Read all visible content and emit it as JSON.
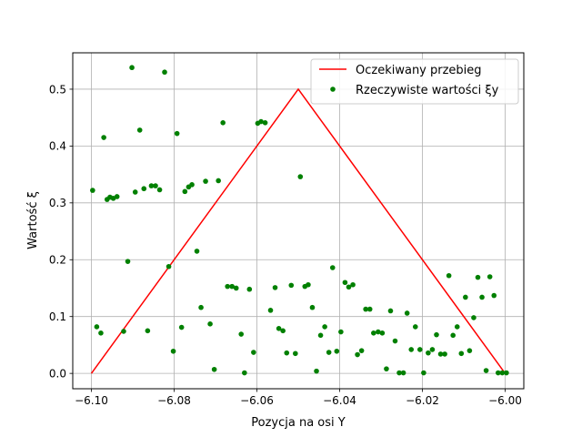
{
  "chart_data": {
    "type": "line+scatter",
    "title": "",
    "xlabel": "Pozycja na osi Y",
    "ylabel": "Wartość ξ",
    "xlim": [
      -6.1045,
      -5.9955
    ],
    "ylim": [
      -0.027,
      0.564
    ],
    "xticks": [
      -6.1,
      -6.08,
      -6.06,
      -6.04,
      -6.02,
      -6.0
    ],
    "xtick_labels": [
      "−6.10",
      "−6.08",
      "−6.06",
      "−6.04",
      "−6.02",
      "−6.00"
    ],
    "yticks": [
      0.0,
      0.1,
      0.2,
      0.3,
      0.4,
      0.5
    ],
    "ytick_labels": [
      "0.0",
      "0.1",
      "0.2",
      "0.3",
      "0.4",
      "0.5"
    ],
    "grid": true,
    "legend_position": "top-right",
    "series": [
      {
        "name": "Oczekiwany przebieg",
        "kind": "line",
        "color": "#ff0000",
        "x": [
          -6.1,
          -6.05,
          -6.0
        ],
        "y": [
          0.0,
          0.5,
          0.0
        ]
      },
      {
        "name": "Rzeczywiste wartości ξy",
        "kind": "scatter",
        "color": "#008000",
        "points": [
          [
            -6.0997,
            0.322
          ],
          [
            -6.0987,
            0.082
          ],
          [
            -6.0977,
            0.071
          ],
          [
            -6.097,
            0.415
          ],
          [
            -6.0962,
            0.306
          ],
          [
            -6.0955,
            0.31
          ],
          [
            -6.0947,
            0.308
          ],
          [
            -6.0938,
            0.311
          ],
          [
            -6.0922,
            0.074
          ],
          [
            -6.0912,
            0.197
          ],
          [
            -6.0902,
            0.538
          ],
          [
            -6.0894,
            0.319
          ],
          [
            -6.0883,
            0.428
          ],
          [
            -6.0873,
            0.325
          ],
          [
            -6.0864,
            0.075
          ],
          [
            -6.0855,
            0.33
          ],
          [
            -6.0845,
            0.33
          ],
          [
            -6.0835,
            0.323
          ],
          [
            -6.0823,
            0.53
          ],
          [
            -6.0813,
            0.188
          ],
          [
            -6.0802,
            0.039
          ],
          [
            -6.0793,
            0.422
          ],
          [
            -6.0782,
            0.081
          ],
          [
            -6.0774,
            0.32
          ],
          [
            -6.0765,
            0.328
          ],
          [
            -6.0757,
            0.332
          ],
          [
            -6.0745,
            0.215
          ],
          [
            -6.0735,
            0.116
          ],
          [
            -6.0724,
            0.338
          ],
          [
            -6.0713,
            0.087
          ],
          [
            -6.0703,
            0.007
          ],
          [
            -6.0693,
            0.339
          ],
          [
            -6.0682,
            0.441
          ],
          [
            -6.0671,
            0.153
          ],
          [
            -6.066,
            0.153
          ],
          [
            -6.065,
            0.15
          ],
          [
            -6.0638,
            0.069
          ],
          [
            -6.063,
            0.001
          ],
          [
            -6.0618,
            0.148
          ],
          [
            -6.0608,
            0.037
          ],
          [
            -6.0598,
            0.44
          ],
          [
            -6.059,
            0.443
          ],
          [
            -6.058,
            0.441
          ],
          [
            -6.0567,
            0.111
          ],
          [
            -6.0556,
            0.151
          ],
          [
            -6.0547,
            0.079
          ],
          [
            -6.0537,
            0.075
          ],
          [
            -6.0528,
            0.036
          ],
          [
            -6.0517,
            0.155
          ],
          [
            -6.0507,
            0.035
          ],
          [
            -6.0495,
            0.346
          ],
          [
            -6.0484,
            0.153
          ],
          [
            -6.0476,
            0.156
          ],
          [
            -6.0466,
            0.116
          ],
          [
            -6.0456,
            0.004
          ],
          [
            -6.0446,
            0.067
          ],
          [
            -6.0436,
            0.082
          ],
          [
            -6.0426,
            0.037
          ],
          [
            -6.0417,
            0.186
          ],
          [
            -6.0407,
            0.039
          ],
          [
            -6.0397,
            0.073
          ],
          [
            -6.0387,
            0.16
          ],
          [
            -6.0378,
            0.152
          ],
          [
            -6.0368,
            0.156
          ],
          [
            -6.0357,
            0.033
          ],
          [
            -6.0347,
            0.04
          ],
          [
            -6.0337,
            0.113
          ],
          [
            -6.0327,
            0.113
          ],
          [
            -6.0318,
            0.071
          ],
          [
            -6.0307,
            0.073
          ],
          [
            -6.0297,
            0.071
          ],
          [
            -6.0287,
            0.008
          ],
          [
            -6.0277,
            0.11
          ],
          [
            -6.0266,
            0.057
          ],
          [
            -6.0256,
            0.001
          ],
          [
            -6.0246,
            0.001
          ],
          [
            -6.0237,
            0.106
          ],
          [
            -6.0227,
            0.042
          ],
          [
            -6.0217,
            0.082
          ],
          [
            -6.0206,
            0.042
          ],
          [
            -6.0197,
            0.001
          ],
          [
            -6.0186,
            0.036
          ],
          [
            -6.0176,
            0.042
          ],
          [
            -6.0166,
            0.068
          ],
          [
            -6.0156,
            0.034
          ],
          [
            -6.0146,
            0.034
          ],
          [
            -6.0136,
            0.172
          ],
          [
            -6.0126,
            0.067
          ],
          [
            -6.0116,
            0.082
          ],
          [
            -6.0106,
            0.035
          ],
          [
            -6.0096,
            0.134
          ],
          [
            -6.0086,
            0.04
          ],
          [
            -6.0076,
            0.098
          ],
          [
            -6.0066,
            0.169
          ],
          [
            -6.0056,
            0.134
          ],
          [
            -6.0046,
            0.005
          ],
          [
            -6.0037,
            0.17
          ],
          [
            -6.0027,
            0.137
          ],
          [
            -6.0017,
            0.001
          ],
          [
            -6.0007,
            0.001
          ],
          [
            -5.9997,
            0.001
          ]
        ]
      }
    ]
  }
}
